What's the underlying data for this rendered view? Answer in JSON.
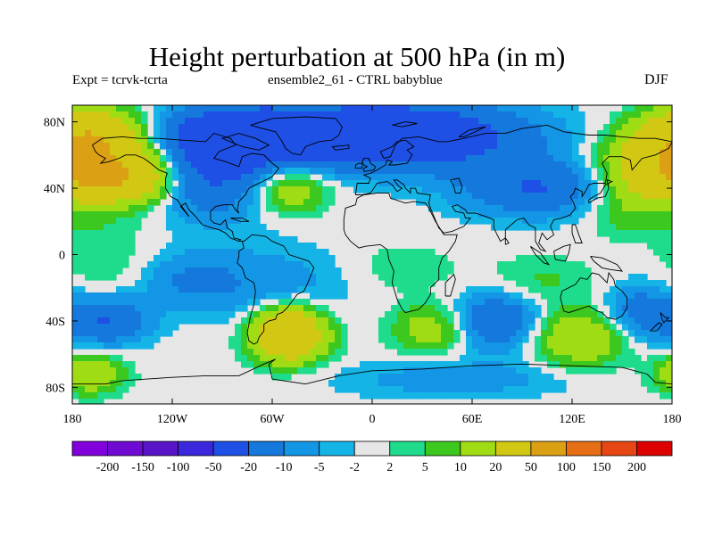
{
  "title": "Height perturbation at 500 hPa (in m)",
  "subtitle_left": "Expt = tcrvk-tcrta",
  "subtitle_center": "ensemble2_61 - CTRL babyblue",
  "subtitle_right": "DJF",
  "map": {
    "projection": "cylindrical equidistant",
    "lon_range": [
      -180,
      180
    ],
    "lat_range": [
      -90,
      90
    ],
    "lat_ticks": [
      {
        "value": 80,
        "label": "80N"
      },
      {
        "value": 40,
        "label": "40N"
      },
      {
        "value": 0,
        "label": "0"
      },
      {
        "value": -40,
        "label": "40S"
      },
      {
        "value": -80,
        "label": "80S"
      }
    ],
    "lon_ticks": [
      {
        "value": -180,
        "label": "180"
      },
      {
        "value": -120,
        "label": "120W"
      },
      {
        "value": -60,
        "label": "60W"
      },
      {
        "value": 0,
        "label": "0"
      },
      {
        "value": 60,
        "label": "60E"
      },
      {
        "value": 120,
        "label": "120E"
      },
      {
        "value": 180,
        "label": "180"
      }
    ],
    "background_color": "#e6e6e6",
    "coastline_color": "#000000"
  },
  "colorbar": {
    "colors": [
      "#8200dc",
      "#6e0ad2",
      "#5a14c8",
      "#3c28dc",
      "#1e50e6",
      "#1478dc",
      "#1496e6",
      "#14b4e6",
      "#e6e6e6",
      "#1edc8c",
      "#3cc81e",
      "#a0dc14",
      "#d2c814",
      "#dca014",
      "#e66e14",
      "#e64614",
      "#dc0000"
    ],
    "labels": [
      "-200",
      "-150",
      "-100",
      "-50",
      "-20",
      "-10",
      "-5",
      "-2",
      "2",
      "5",
      "10",
      "20",
      "50",
      "100",
      "150",
      "200"
    ]
  },
  "field": [
    {
      "lon": -165,
      "lat": 50,
      "value": 50,
      "sx": 24,
      "sy": 16
    },
    {
      "lon": -170,
      "lat": 75,
      "value": 30,
      "sx": 20,
      "sy": 10
    },
    {
      "lon": -140,
      "lat": 45,
      "value": 20,
      "sx": 16,
      "sy": 12
    },
    {
      "lon": -160,
      "lat": 30,
      "value": -10,
      "sx": 28,
      "sy": 8
    },
    {
      "lon": -95,
      "lat": 48,
      "value": -20,
      "sx": 30,
      "sy": 18
    },
    {
      "lon": -80,
      "lat": 72,
      "value": -30,
      "sx": 32,
      "sy": 12
    },
    {
      "lon": -50,
      "lat": 40,
      "value": 20,
      "sx": 16,
      "sy": 11
    },
    {
      "lon": 10,
      "lat": 72,
      "value": -40,
      "sx": 55,
      "sy": 14
    },
    {
      "lon": 100,
      "lat": 40,
      "value": -20,
      "sx": 34,
      "sy": 12
    },
    {
      "lon": 165,
      "lat": 55,
      "value": 20,
      "sx": 22,
      "sy": 14
    },
    {
      "lon": 150,
      "lat": 30,
      "value": 10,
      "sx": 18,
      "sy": 12
    },
    {
      "lon": -160,
      "lat": -5,
      "value": 5,
      "sx": 20,
      "sy": 14
    },
    {
      "lon": -110,
      "lat": -15,
      "value": -10,
      "sx": 22,
      "sy": 12
    },
    {
      "lon": -50,
      "lat": -48,
      "value": 50,
      "sx": 15,
      "sy": 11
    },
    {
      "lon": -160,
      "lat": -40,
      "value": -20,
      "sx": 18,
      "sy": 10
    },
    {
      "lon": -60,
      "lat": -20,
      "value": -8,
      "sx": 30,
      "sy": 18
    },
    {
      "lon": 35,
      "lat": -45,
      "value": 15,
      "sx": 16,
      "sy": 10
    },
    {
      "lon": 75,
      "lat": -40,
      "value": -20,
      "sx": 18,
      "sy": 12
    },
    {
      "lon": 125,
      "lat": -50,
      "value": 20,
      "sx": 20,
      "sy": 12
    },
    {
      "lon": 100,
      "lat": -15,
      "value": 6,
      "sx": 22,
      "sy": 10
    },
    {
      "lon": 160,
      "lat": -35,
      "value": -15,
      "sx": 15,
      "sy": 12
    },
    {
      "lon": -170,
      "lat": -72,
      "value": 20,
      "sx": 14,
      "sy": 8
    },
    {
      "lon": 50,
      "lat": -75,
      "value": -8,
      "sx": 50,
      "sy": 8
    },
    {
      "lon": 20,
      "lat": -8,
      "value": 5,
      "sx": 20,
      "sy": 10
    }
  ]
}
